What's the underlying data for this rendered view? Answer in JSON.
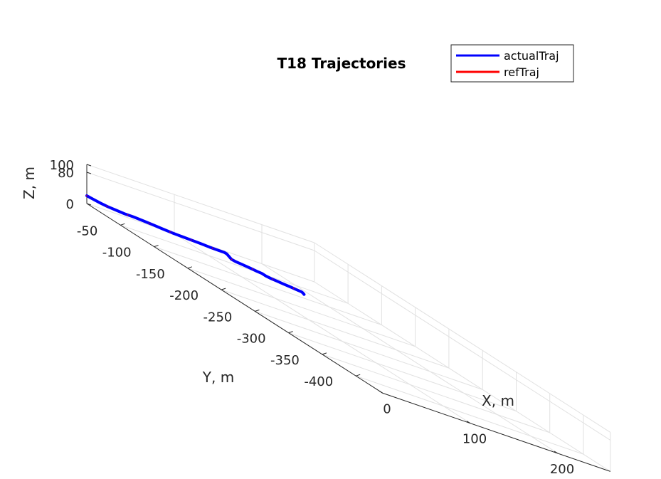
{
  "colors": {
    "actual": "#0000ff",
    "ref": "#ff0000",
    "grid": "#e1e1e1",
    "axis": "#262626"
  },
  "chart_data": {
    "type": "line",
    "projection": "3d",
    "title": "T18 Trajectories",
    "xlabel": "X, m",
    "ylabel": "Y, m",
    "zlabel": "Z, m",
    "xlim": [
      0,
      260
    ],
    "ylim": [
      -440,
      0
    ],
    "zlim": [
      0,
      100
    ],
    "x_ticks": [
      {
        "value": 0,
        "label": "0"
      },
      {
        "value": 100,
        "label": "100"
      },
      {
        "value": 200,
        "label": "200"
      }
    ],
    "y_ticks": [
      {
        "value": -50,
        "label": "-50"
      },
      {
        "value": -100,
        "label": "-100"
      },
      {
        "value": -150,
        "label": "-150"
      },
      {
        "value": -200,
        "label": "-200"
      },
      {
        "value": -250,
        "label": "-250"
      },
      {
        "value": -300,
        "label": "-300"
      },
      {
        "value": -350,
        "label": "-350"
      },
      {
        "value": -400,
        "label": "-400"
      }
    ],
    "z_ticks": [
      {
        "value": 0,
        "label": "0"
      },
      {
        "value": 80,
        "label": "80"
      },
      {
        "value": 100,
        "label": "100"
      }
    ],
    "grid": true,
    "legend_position": "top-right",
    "series": [
      {
        "name": "actualTraj",
        "color": "#0000ff",
        "points": [
          [
            0,
            0,
            20
          ],
          [
            7,
            -2,
            17
          ],
          [
            13,
            -4,
            15
          ],
          [
            20,
            -5,
            13
          ],
          [
            28,
            -6,
            12
          ],
          [
            37,
            -8,
            11
          ],
          [
            46,
            -10,
            12
          ],
          [
            55,
            -13,
            12
          ],
          [
            63,
            -16,
            12
          ],
          [
            71,
            -20,
            12
          ],
          [
            80,
            -23,
            12
          ],
          [
            88,
            -27,
            13
          ],
          [
            96,
            -30,
            14
          ],
          [
            104,
            -34,
            15
          ],
          [
            111,
            -38,
            16
          ],
          [
            118,
            -41,
            17
          ],
          [
            124,
            -43,
            18
          ],
          [
            126,
            -44,
            17
          ],
          [
            130,
            -46,
            8
          ],
          [
            133,
            -48,
            7
          ],
          [
            138,
            -51,
            7
          ],
          [
            144,
            -55,
            7
          ],
          [
            150,
            -58,
            6
          ],
          [
            154,
            -60,
            6
          ],
          [
            157,
            -62,
            4
          ],
          [
            161,
            -64,
            3
          ],
          [
            166,
            -67,
            3
          ],
          [
            171,
            -70,
            3
          ],
          [
            177,
            -73,
            3
          ],
          [
            182,
            -76,
            3
          ],
          [
            185,
            -78,
            3
          ],
          [
            186,
            -79,
            2
          ],
          [
            186,
            -81,
            0
          ]
        ]
      },
      {
        "name": "refTraj",
        "color": "#ff0000",
        "points": [
          [
            0,
            0,
            20
          ],
          [
            7,
            -2,
            17
          ],
          [
            13,
            -4,
            15
          ],
          [
            20,
            -5,
            13
          ],
          [
            28,
            -6,
            12
          ],
          [
            37,
            -8,
            11
          ],
          [
            46,
            -10,
            12
          ],
          [
            55,
            -13,
            12
          ],
          [
            63,
            -16,
            12
          ],
          [
            71,
            -20,
            12
          ],
          [
            80,
            -23,
            12
          ],
          [
            88,
            -27,
            13
          ],
          [
            96,
            -30,
            14
          ],
          [
            104,
            -34,
            15
          ],
          [
            111,
            -38,
            16
          ],
          [
            118,
            -41,
            17
          ],
          [
            124,
            -43,
            18
          ],
          [
            126,
            -44,
            17
          ],
          [
            130,
            -46,
            8
          ],
          [
            133,
            -48,
            7
          ],
          [
            138,
            -51,
            7
          ],
          [
            144,
            -55,
            7
          ],
          [
            150,
            -58,
            6
          ],
          [
            154,
            -60,
            6
          ],
          [
            157,
            -62,
            4
          ],
          [
            161,
            -64,
            3
          ],
          [
            166,
            -67,
            3
          ],
          [
            171,
            -70,
            3
          ],
          [
            177,
            -73,
            3
          ],
          [
            182,
            -76,
            3
          ],
          [
            185,
            -78,
            3
          ],
          [
            187,
            -79,
            3
          ]
        ]
      }
    ]
  }
}
